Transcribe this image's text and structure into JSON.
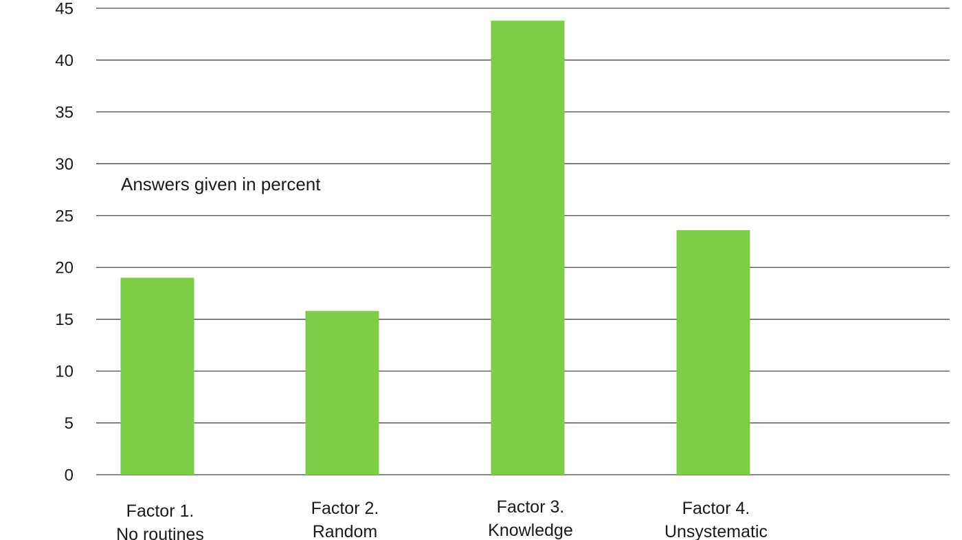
{
  "chart_data": {
    "type": "bar",
    "categories": [
      [
        "Factor 1.",
        "No routines"
      ],
      [
        "Factor 2.",
        "Random"
      ],
      [
        "Factor 3.",
        "Knowledge"
      ],
      [
        "Factor 4.",
        "Unsystematic"
      ]
    ],
    "values": [
      19,
      15.8,
      43.8,
      23.6
    ],
    "annotation": "Answers given in percent",
    "ylim": [
      0,
      45
    ],
    "yticks": [
      0,
      5,
      10,
      15,
      20,
      25,
      30,
      35,
      40,
      45
    ],
    "grid": true,
    "bar_color": "#7dce46"
  }
}
